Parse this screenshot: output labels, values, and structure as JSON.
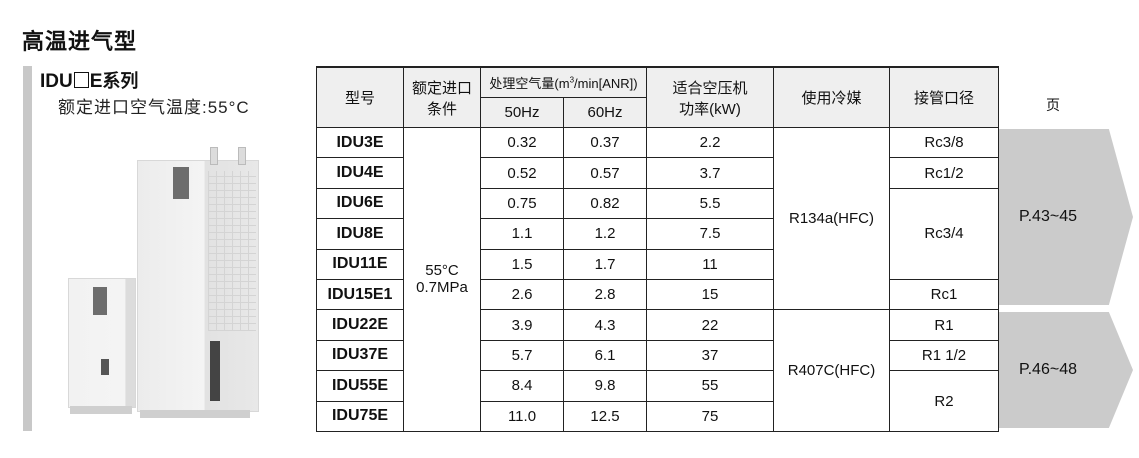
{
  "section_title": "高温进气型",
  "series": {
    "prefix": "IDU",
    "suffix": "E",
    "label": "系列",
    "subtitle": "额定进口空气温度:55°C"
  },
  "table": {
    "headers": {
      "model": "型号",
      "condition_line1": "额定进口",
      "condition_line2": "条件",
      "flow": "处理空气量(m",
      "flow_sup": "3",
      "flow_tail": "/min[ANR])",
      "hz50": "50Hz",
      "hz60": "60Hz",
      "power_line1": "适合空压机",
      "power_line2": "功率(kW)",
      "refrigerant": "使用冷媒",
      "port": "接管口径",
      "page": "页"
    },
    "condition": {
      "temp": "55°C",
      "pressure": "0.7MPa"
    },
    "rows": [
      {
        "model": "IDU3E",
        "f50": "0.32",
        "f60": "0.37",
        "kw": "2.2"
      },
      {
        "model": "IDU4E",
        "f50": "0.52",
        "f60": "0.57",
        "kw": "3.7"
      },
      {
        "model": "IDU6E",
        "f50": "0.75",
        "f60": "0.82",
        "kw": "5.5"
      },
      {
        "model": "IDU8E",
        "f50": "1.1",
        "f60": "1.2",
        "kw": "7.5"
      },
      {
        "model": "IDU11E",
        "f50": "1.5",
        "f60": "1.7",
        "kw": "11"
      },
      {
        "model": "IDU15E1",
        "f50": "2.6",
        "f60": "2.8",
        "kw": "15"
      },
      {
        "model": "IDU22E",
        "f50": "3.9",
        "f60": "4.3",
        "kw": "22"
      },
      {
        "model": "IDU37E",
        "f50": "5.7",
        "f60": "6.1",
        "kw": "37"
      },
      {
        "model": "IDU55E",
        "f50": "8.4",
        "f60": "9.8",
        "kw": "55"
      },
      {
        "model": "IDU75E",
        "f50": "11.0",
        "f60": "12.5",
        "kw": "75"
      }
    ],
    "refrigerants": [
      "R134a(HFC)",
      "R407C(HFC)"
    ],
    "ports": [
      "Rc3/8",
      "Rc1/2",
      "Rc3/4",
      "Rc1",
      "R1",
      "R1 1/2",
      "R2"
    ],
    "pages": [
      "P.43~45",
      "P.46~48"
    ]
  },
  "colors": {
    "header_bg": "#efefef",
    "arrow": "#cbcbcb",
    "side_bar": "#c8c8c8"
  }
}
